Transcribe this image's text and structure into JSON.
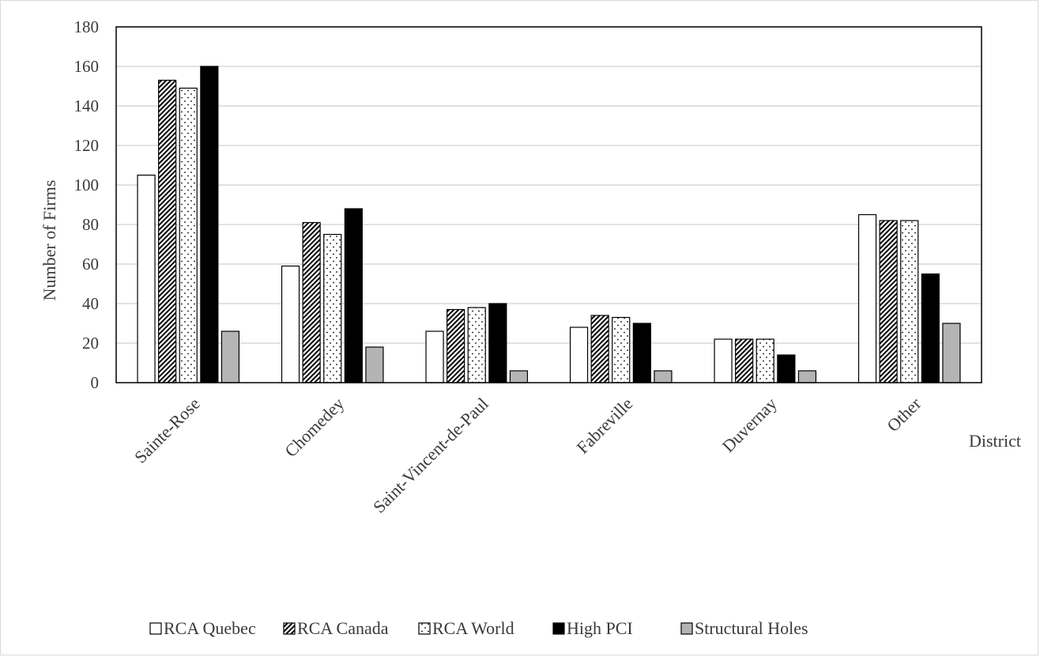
{
  "chart_data": {
    "type": "bar",
    "title": "",
    "xlabel": "District",
    "ylabel": "Number of Firms",
    "ylim": [
      0,
      180
    ],
    "yticks": [
      0,
      20,
      40,
      60,
      80,
      100,
      120,
      140,
      160,
      180
    ],
    "grid": true,
    "legend_position": "bottom",
    "categories": [
      "Sainte-Rose",
      "Chomedey",
      "Saint-Vincent-de-Paul",
      "Fabreville",
      "Duvernay",
      "Other"
    ],
    "series": [
      {
        "name": "RCA Quebec",
        "values": [
          105,
          59,
          26,
          28,
          22,
          85
        ],
        "fill": "white"
      },
      {
        "name": "RCA Canada",
        "values": [
          153,
          81,
          37,
          34,
          22,
          82
        ],
        "fill": "diagonal-hatch"
      },
      {
        "name": "RCA World",
        "values": [
          149,
          75,
          38,
          33,
          22,
          82
        ],
        "fill": "dotted"
      },
      {
        "name": "High PCI",
        "values": [
          160,
          88,
          40,
          30,
          14,
          55
        ],
        "fill": "black"
      },
      {
        "name": "Structural Holes",
        "values": [
          26,
          18,
          6,
          6,
          6,
          30
        ],
        "fill": "gray"
      }
    ],
    "colors": {
      "outline": "#000000",
      "black": "#000000",
      "gray": "#b4b4b4",
      "grid": "#d9d9d9",
      "text": "#3a3a3a"
    }
  }
}
